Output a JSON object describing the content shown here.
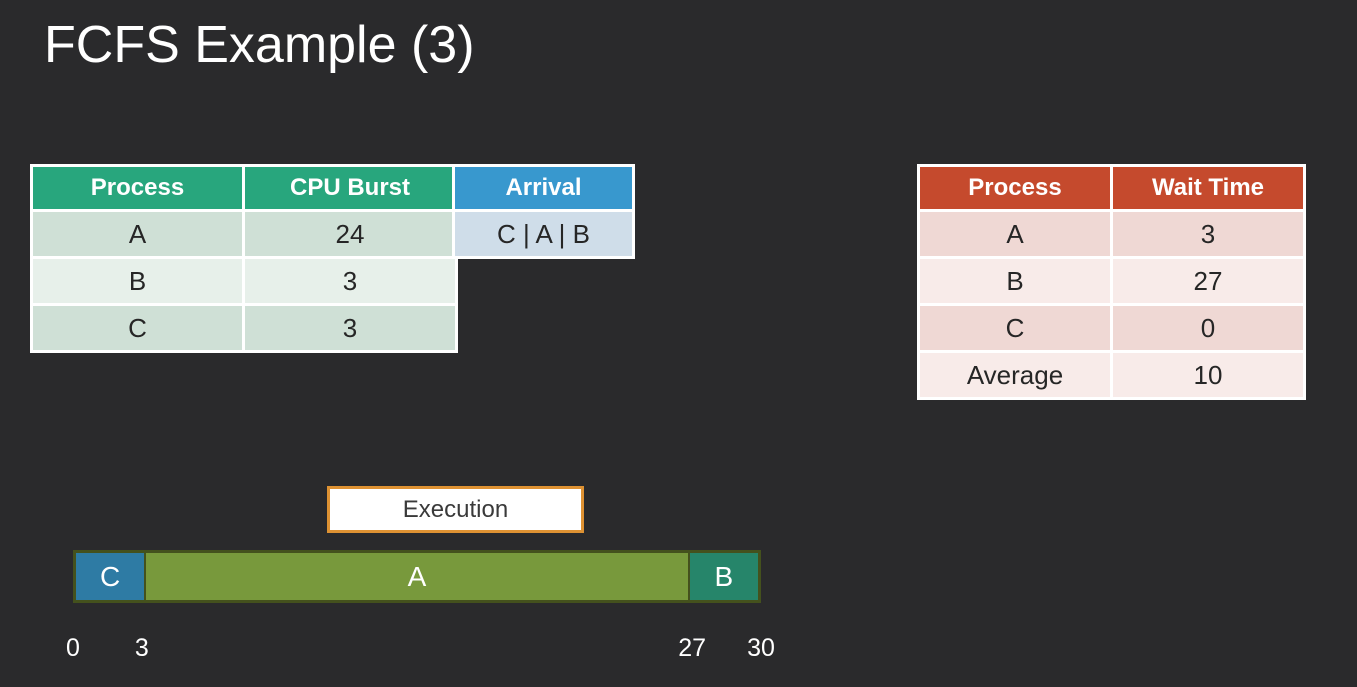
{
  "slide": {
    "title": "FCFS Example (3)"
  },
  "burst_table": {
    "headers": [
      "Process",
      "CPU Burst"
    ],
    "rows": [
      [
        "A",
        "24"
      ],
      [
        "B",
        "3"
      ],
      [
        "C",
        "3"
      ]
    ]
  },
  "arrival_table": {
    "header": "Arrival",
    "value": "C | A | B"
  },
  "wait_table": {
    "headers": [
      "Process",
      "Wait Time"
    ],
    "rows": [
      [
        "A",
        "3"
      ],
      [
        "B",
        "27"
      ],
      [
        "C",
        "0"
      ],
      [
        "Average",
        "10"
      ]
    ]
  },
  "execution": {
    "label": "Execution",
    "segments": [
      {
        "process": "C",
        "start": 0,
        "end": 3,
        "width_pct": 10,
        "color": "#2e7ba4"
      },
      {
        "process": "A",
        "start": 3,
        "end": 27,
        "width_pct": 80,
        "color": "#78993c"
      },
      {
        "process": "B",
        "start": 27,
        "end": 30,
        "width_pct": 10,
        "color": "#26856a"
      }
    ],
    "ticks": [
      {
        "label": "0",
        "pos_pct": 0
      },
      {
        "label": "3",
        "pos_pct": 10
      },
      {
        "label": "27",
        "pos_pct": 90
      },
      {
        "label": "30",
        "pos_pct": 100
      }
    ]
  },
  "colors": {
    "background": "#2a2a2c",
    "header_green": "#28a67d",
    "header_blue": "#3898ce",
    "header_red": "#c54a2d",
    "row_green_dark": "#cfe0d6",
    "row_green_light": "#e7f0ea",
    "arrival_cell_blue": "#cfdde9",
    "row_pink_dark": "#efd8d4",
    "row_pink_light": "#f8ebe9",
    "gantt_c": "#2e7ba4",
    "gantt_a": "#78993c",
    "gantt_b": "#26856a",
    "gantt_border": "#44511d",
    "execution_border": "#de9233",
    "title_text": "#ffffff"
  }
}
